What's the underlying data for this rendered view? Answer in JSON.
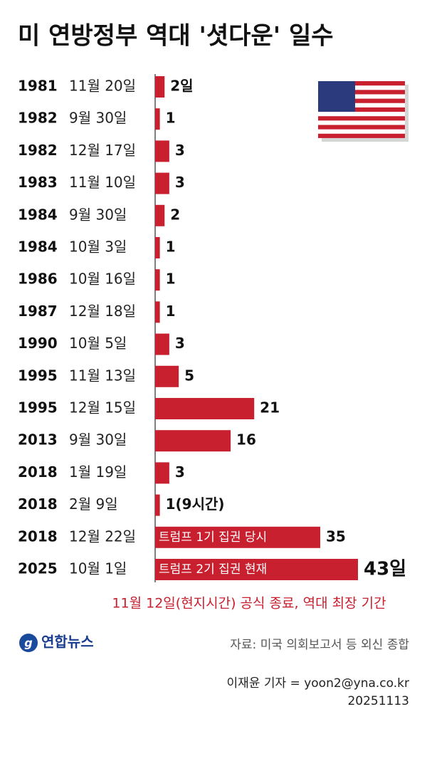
{
  "chart_data": {
    "type": "bar",
    "title": "미 연방정부 역대 '셧다운' 일수",
    "categories": [
      [
        "1981",
        "11월 20일"
      ],
      [
        "1982",
        "9월 30일"
      ],
      [
        "1982",
        "12월 17일"
      ],
      [
        "1983",
        "11월 10일"
      ],
      [
        "1984",
        "9월 30일"
      ],
      [
        "1984",
        "10월 3일"
      ],
      [
        "1986",
        "10월 16일"
      ],
      [
        "1987",
        "12월 18일"
      ],
      [
        "1990",
        "10월 5일"
      ],
      [
        "1995",
        "11월 13일"
      ],
      [
        "1995",
        "12월 15일"
      ],
      [
        "2013",
        "9월 30일"
      ],
      [
        "2018",
        "1월 19일"
      ],
      [
        "2018",
        "2월 9일"
      ],
      [
        "2018",
        "12월 22일"
      ],
      [
        "2025",
        "10월 1일"
      ]
    ],
    "values": [
      2,
      1,
      3,
      3,
      2,
      1,
      1,
      1,
      3,
      5,
      21,
      16,
      3,
      1,
      35,
      43
    ],
    "value_labels": [
      "2일",
      "1",
      "3",
      "3",
      "2",
      "1",
      "1",
      "1",
      "3",
      "5",
      "21",
      "16",
      "3",
      "1(9시간)",
      "35",
      "43일"
    ],
    "bar_annotations": {
      "14": "트럼프 1기 집권 당시",
      "15": "트럼프 2기 집권 현재"
    },
    "color": "#c8202f",
    "footnote": "11월 12일(현지시간) 공식 종료, 역대 최장 기간",
    "logo": "연합뉴스",
    "source": "자료: 미국 의회보고서 등 외신 종합",
    "credit": "이재윤 기자 = yoon2@yna.co.kr",
    "date": "20251113"
  }
}
